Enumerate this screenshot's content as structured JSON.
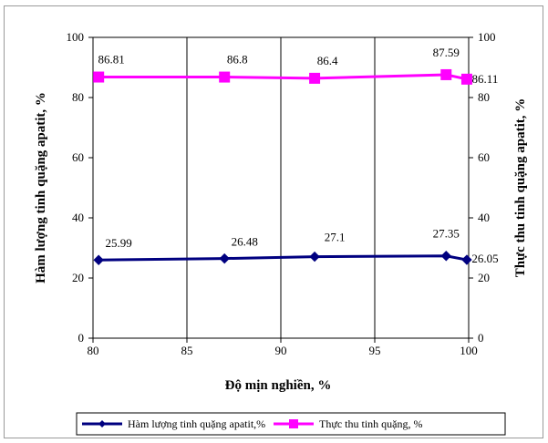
{
  "chart_data": {
    "type": "line",
    "xlabel": "Độ mịn nghiền, %",
    "ylabel_left": "Hàm lượng tinh quặng apatit, %",
    "ylabel_right": "Thực thu tinh quặng apatit, %",
    "xlim": [
      80,
      100
    ],
    "ylim": [
      0,
      100
    ],
    "x_ticks": [
      "80",
      "85",
      "90",
      "95",
      "100"
    ],
    "y_ticks": [
      "0",
      "20",
      "40",
      "60",
      "80",
      "100"
    ],
    "grid": "vertical",
    "legend_position": "bottom",
    "series": [
      {
        "name": "Hàm lượng tinh quặng apatit,%",
        "color": "#000080",
        "marker": "diamond",
        "x": [
          80.3,
          87.0,
          91.8,
          98.8,
          99.9
        ],
        "y": [
          25.99,
          26.48,
          27.1,
          27.35,
          26.05
        ],
        "labels": [
          "25.99",
          "26.48",
          "27.1",
          "27.35",
          "26.05"
        ]
      },
      {
        "name": "Thực thu tinh quặng, %",
        "color": "#FF00FF",
        "marker": "square",
        "x": [
          80.3,
          87.0,
          91.8,
          98.8,
          99.9
        ],
        "y": [
          86.81,
          86.8,
          86.4,
          87.59,
          86.11
        ],
        "labels": [
          "86.81",
          "86.8",
          "86.4",
          "87.59",
          "86.11"
        ]
      }
    ]
  }
}
